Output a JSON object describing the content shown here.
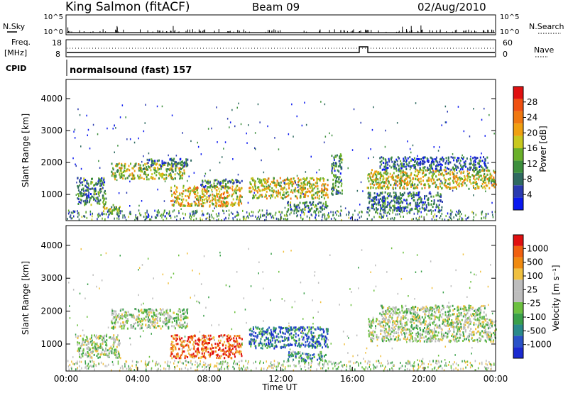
{
  "header": {
    "title": "King Salmon (fitACF)",
    "beam": "Beam 09",
    "date": "02/Aug/2010"
  },
  "status_panel": {
    "nsky_label": "N.Sky",
    "nsky_ticks": [
      "10^5",
      "10^0"
    ],
    "nsearch_label": "N.Search",
    "nsearch_ticks": [
      "10^5",
      "10^0"
    ],
    "freq_label_line1": "Freq.",
    "freq_label_line2": "[MHz]",
    "freq_ticks": [
      "18",
      "8"
    ],
    "nave_label": "Nave",
    "nave_ticks": [
      "60",
      "0"
    ],
    "cpid_label": "CPID",
    "cpid_text": "normalsound (fast) 157"
  },
  "x_axis": {
    "label": "Time UT",
    "ticks": [
      "00:00",
      "04:00",
      "08:00",
      "12:00",
      "16:00",
      "20:00",
      "00:00"
    ]
  },
  "chart_data": [
    {
      "type": "heatmap",
      "name": "power",
      "ylabel": "Slant Range [km]",
      "x_range_hours": [
        0,
        24
      ],
      "y_range_km": [
        180,
        4600
      ],
      "y_ticks": [
        1000,
        2000,
        3000,
        4000
      ],
      "colorbar": {
        "label": "Power [dB]",
        "ticks": [
          "28",
          "24",
          "20",
          "16",
          "12",
          "8",
          "4"
        ],
        "colors": [
          "#0a18f0",
          "#2a3ab0",
          "#2f6a60",
          "#3d8f3d",
          "#6ab02a",
          "#c8c81e",
          "#f0a010",
          "#f07810",
          "#f05010",
          "#e01010"
        ]
      },
      "scatter_regions": [
        {
          "t_start": 0.6,
          "t_end": 2.2,
          "r_low": 700,
          "r_high": 1550,
          "level": 0.3
        },
        {
          "t_start": 2.0,
          "t_end": 3.0,
          "r_low": 400,
          "r_high": 700,
          "level": 0.45
        },
        {
          "t_start": 2.5,
          "t_end": 6.6,
          "r_low": 1500,
          "r_high": 2000,
          "level": 0.5
        },
        {
          "t_start": 4.5,
          "t_end": 7.0,
          "r_low": 1900,
          "r_high": 2150,
          "level": 0.25
        },
        {
          "t_start": 5.8,
          "t_end": 9.8,
          "r_low": 650,
          "r_high": 1300,
          "level": 0.6
        },
        {
          "t_start": 7.5,
          "t_end": 9.8,
          "r_low": 1250,
          "r_high": 1500,
          "level": 0.3
        },
        {
          "t_start": 10.2,
          "t_end": 14.6,
          "r_low": 900,
          "r_high": 1550,
          "level": 0.55
        },
        {
          "t_start": 12.3,
          "t_end": 14.6,
          "r_low": 500,
          "r_high": 800,
          "level": 0.3
        },
        {
          "t_start": 14.8,
          "t_end": 15.4,
          "r_low": 1000,
          "r_high": 2300,
          "level": 0.3
        },
        {
          "t_start": 16.8,
          "t_end": 24.0,
          "r_low": 1200,
          "r_high": 1800,
          "level": 0.55
        },
        {
          "t_start": 16.8,
          "t_end": 21.0,
          "r_low": 500,
          "r_high": 1100,
          "level": 0.25
        },
        {
          "t_start": 17.5,
          "t_end": 23.5,
          "r_low": 1800,
          "r_high": 2200,
          "level": 0.2
        }
      ]
    },
    {
      "type": "heatmap",
      "name": "velocity",
      "ylabel": "Slant Range [km]",
      "x_range_hours": [
        0,
        24
      ],
      "y_range_km": [
        180,
        4600
      ],
      "y_ticks": [
        1000,
        2000,
        3000,
        4000
      ],
      "colorbar": {
        "label": "Velocity [m s⁻¹]",
        "ticks": [
          "1000",
          "500",
          "100",
          "25",
          "-25",
          "-100",
          "-500",
          "-1000"
        ],
        "colors": [
          "#1a2ad0",
          "#2a52c8",
          "#2a8a8a",
          "#3aa04a",
          "#6cc040",
          "#bdbdbd",
          "#bdbdbd",
          "#f0c040",
          "#f08a10",
          "#f06010",
          "#e01010"
        ]
      },
      "scatter_regions": [
        {
          "t_start": 0.6,
          "t_end": 3.0,
          "r_low": 600,
          "r_high": 1300,
          "level": 0.5
        },
        {
          "t_start": 2.5,
          "t_end": 6.8,
          "r_low": 1500,
          "r_high": 2100,
          "level": 0.5
        },
        {
          "t_start": 5.8,
          "t_end": 9.8,
          "r_low": 600,
          "r_high": 1300,
          "level": 0.85
        },
        {
          "t_start": 10.2,
          "t_end": 14.6,
          "r_low": 900,
          "r_high": 1550,
          "level": 0.2
        },
        {
          "t_start": 12.3,
          "t_end": 14.6,
          "r_low": 500,
          "r_high": 800,
          "level": 0.3
        },
        {
          "t_start": 16.8,
          "t_end": 24.0,
          "r_low": 1100,
          "r_high": 1800,
          "level": 0.5
        },
        {
          "t_start": 17.5,
          "t_end": 23.5,
          "r_low": 1800,
          "r_high": 2200,
          "level": 0.5
        }
      ]
    }
  ]
}
